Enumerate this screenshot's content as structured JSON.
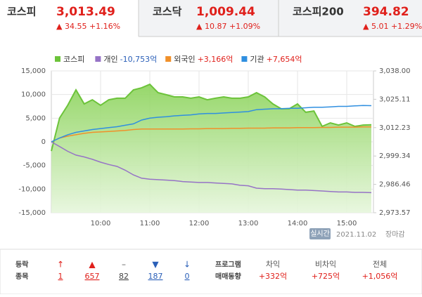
{
  "tabs": [
    {
      "name": "코스피",
      "value": "3,013.49",
      "change": "▲ 34.55 +1.16%"
    },
    {
      "name": "코스닥",
      "value": "1,009.44",
      "change": "▲ 10.87 +1.09%"
    },
    {
      "name": "코스피200",
      "value": "394.82",
      "change": "▲ 5.01 +1.29%"
    }
  ],
  "chart_data": {
    "type": "line",
    "x": [
      "09:00",
      "09:10",
      "09:20",
      "09:30",
      "09:40",
      "09:50",
      "10:00",
      "10:10",
      "10:20",
      "10:30",
      "10:40",
      "10:50",
      "11:00",
      "11:10",
      "11:20",
      "11:30",
      "11:40",
      "11:50",
      "12:00",
      "12:10",
      "12:20",
      "12:30",
      "12:40",
      "12:50",
      "13:00",
      "13:10",
      "13:20",
      "13:30",
      "13:40",
      "13:50",
      "14:00",
      "14:10",
      "14:20",
      "14:30",
      "14:40",
      "14:50",
      "15:00",
      "15:10",
      "15:20",
      "15:30"
    ],
    "xlim": [
      "09:00",
      "15:30"
    ],
    "xticks": [
      "10:00",
      "11:00",
      "12:00",
      "13:00",
      "14:00",
      "15:00"
    ],
    "ylim": [
      -15000,
      15000
    ],
    "yticks": [
      {
        "value": -15000,
        "label": "-15,000"
      },
      {
        "value": -10000,
        "label": "-10,000"
      },
      {
        "value": -5000,
        "label": "-5,000"
      },
      0,
      {
        "value": 5000,
        "label": "5,000"
      },
      {
        "value": 10000,
        "label": "10,000"
      },
      {
        "value": 15000,
        "label": "15,000"
      }
    ],
    "y2lim": [
      2973.57,
      3038.0
    ],
    "y2ticks": [
      {
        "value": 2973.57,
        "label": "2,973.57"
      },
      {
        "value": 2986.46,
        "label": "2,986.46"
      },
      {
        "value": 2999.34,
        "label": "2,999.34"
      },
      {
        "value": 3012.23,
        "label": "3,012.23"
      },
      {
        "value": 3025.11,
        "label": "3,025.11"
      },
      {
        "value": 3038.0,
        "label": "3,038.00"
      }
    ],
    "series": [
      {
        "name": "코스피",
        "color": "#6cc33a",
        "axis": "y2",
        "area": true,
        "values": [
          3001.6,
          3016.6,
          3022.4,
          3029.4,
          3023.0,
          3024.9,
          3022.4,
          3024.9,
          3025.6,
          3025.6,
          3029.4,
          3030.3,
          3031.9,
          3028.1,
          3027.2,
          3026.2,
          3026.2,
          3025.6,
          3026.2,
          3024.9,
          3025.6,
          3026.2,
          3025.6,
          3025.6,
          3026.2,
          3028.1,
          3026.2,
          3023.0,
          3020.8,
          3020.8,
          3023.0,
          3019.2,
          3019.8,
          3012.8,
          3014.4,
          3013.4,
          3014.4,
          3012.8,
          3013.4,
          3013.49
        ]
      },
      {
        "name": "개인",
        "legend_value": "-10,753억",
        "legend_color": "#2a5fb8",
        "color": "#9673c6",
        "values": [
          0,
          -1000,
          -2000,
          -2800,
          -3200,
          -3700,
          -4300,
          -4800,
          -5200,
          -6000,
          -7000,
          -7700,
          -7900,
          -8000,
          -8100,
          -8200,
          -8400,
          -8500,
          -8600,
          -8600,
          -8700,
          -8800,
          -8900,
          -9200,
          -9300,
          -9800,
          -9900,
          -9900,
          -10000,
          -10100,
          -10200,
          -10200,
          -10300,
          -10400,
          -10500,
          -10600,
          -10600,
          -10700,
          -10700,
          -10753
        ]
      },
      {
        "name": "외국인",
        "legend_value": "+3,166억",
        "legend_color": "#e0201b",
        "color": "#f0902a",
        "values": [
          0,
          800,
          1200,
          1500,
          1800,
          2000,
          2100,
          2200,
          2300,
          2400,
          2600,
          2700,
          2700,
          2700,
          2700,
          2700,
          2700,
          2750,
          2750,
          2800,
          2800,
          2800,
          2850,
          2850,
          2900,
          2900,
          2900,
          2950,
          2950,
          2950,
          3000,
          3000,
          3000,
          3050,
          3050,
          3100,
          3100,
          3100,
          3150,
          3166
        ]
      },
      {
        "name": "기관",
        "legend_value": "+7,654억",
        "legend_color": "#e0201b",
        "color": "#2f8fe0",
        "values": [
          0,
          800,
          1500,
          2000,
          2300,
          2600,
          2800,
          3000,
          3200,
          3500,
          3800,
          4600,
          5000,
          5200,
          5300,
          5500,
          5600,
          5700,
          5900,
          6000,
          6000,
          6100,
          6200,
          6300,
          6400,
          6800,
          6900,
          7000,
          7000,
          7100,
          7100,
          7200,
          7300,
          7300,
          7400,
          7500,
          7500,
          7600,
          7700,
          7654
        ]
      }
    ]
  },
  "status": {
    "badge": "실시간",
    "date": "2021.11.02",
    "state": "장마감"
  },
  "breadth": {
    "label1": "등락",
    "label2": "종목",
    "items": [
      {
        "icon": "↑",
        "color": "#e0201b",
        "count": "1"
      },
      {
        "icon": "▲",
        "color": "#e0201b",
        "count": "657"
      },
      {
        "icon": "–",
        "color": "#666",
        "count": "82"
      },
      {
        "icon": "▼",
        "color": "#2a5fb8",
        "count": "187"
      },
      {
        "icon": "↓",
        "color": "#2a5fb8",
        "count": "0"
      }
    ]
  },
  "program": {
    "label1": "프로그램",
    "label2": "매매동향",
    "items": [
      {
        "name": "차익",
        "value": "+332억"
      },
      {
        "name": "비차익",
        "value": "+725억"
      },
      {
        "name": "전체",
        "value": "+1,056억"
      }
    ]
  }
}
